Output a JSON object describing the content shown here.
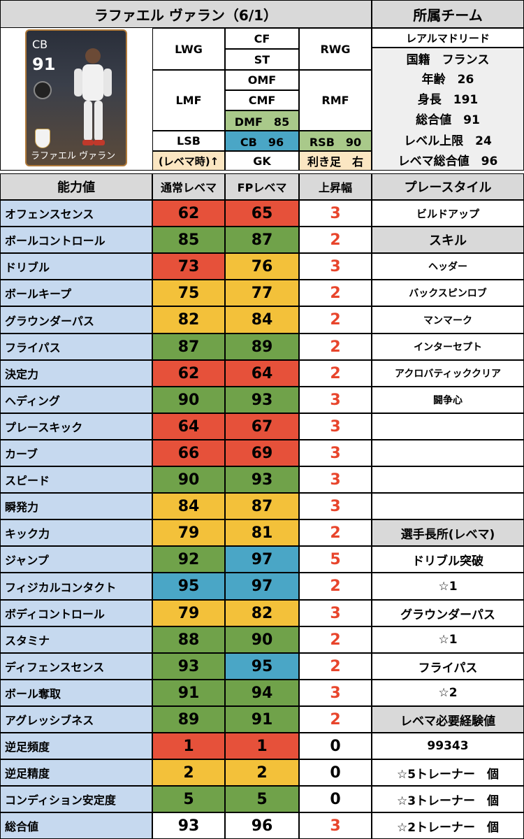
{
  "header": {
    "title": "ラファエル ヴァラン（6/1）",
    "team_header": "所属チーム"
  },
  "card": {
    "position": "CB",
    "rating": "91",
    "name": "ラファエル ヴァラン"
  },
  "positions": {
    "lwg": "LWG",
    "cf": "CF",
    "st": "ST",
    "rwg": "RWG",
    "lmf": "LMF",
    "omf": "OMF",
    "cmf": "CMF",
    "rmf": "RMF",
    "dmf": "DMF　85",
    "lsb": "LSB",
    "cb": "CB　96",
    "rsb": "RSB　90",
    "revema_note": "(レベマ時)↑",
    "gk": "GK",
    "foot": "利き足　右"
  },
  "profile": {
    "team": "レアルマドリード",
    "nationality": "国籍　フランス",
    "age": "年齢　26",
    "height": "身長　191",
    "overall": "総合値　91",
    "level_cap": "レベル上限　24",
    "revema_overall": "レベマ総合値　96"
  },
  "table": {
    "headers": [
      "能力値",
      "通常レベマ",
      "FPレベマ",
      "上昇幅",
      "プレースタイル"
    ],
    "rows": [
      {
        "name": "オフェンスセンス",
        "normal": "62",
        "fp": "65",
        "up": "3",
        "nc": "orange",
        "fc": "orange",
        "side": "ビルドアップ",
        "sc": "",
        "ss": "f15"
      },
      {
        "name": "ボールコントロール",
        "normal": "85",
        "fp": "87",
        "up": "2",
        "nc": "green",
        "fc": "green",
        "side": "スキル",
        "sc": "gray",
        "ss": "f18"
      },
      {
        "name": "ドリブル",
        "normal": "73",
        "fp": "76",
        "up": "3",
        "nc": "orange",
        "fc": "yellow",
        "side": "ヘッダー",
        "sc": "",
        "ss": "f14"
      },
      {
        "name": "ボールキープ",
        "normal": "75",
        "fp": "77",
        "up": "2",
        "nc": "yellow",
        "fc": "yellow",
        "side": "バックスピンロブ",
        "sc": "",
        "ss": "f14"
      },
      {
        "name": "グラウンダーパス",
        "normal": "82",
        "fp": "84",
        "up": "2",
        "nc": "yellow",
        "fc": "yellow",
        "side": "マンマーク",
        "sc": "",
        "ss": "f14"
      },
      {
        "name": "フライパス",
        "normal": "87",
        "fp": "89",
        "up": "2",
        "nc": "green",
        "fc": "green",
        "side": "インターセプト",
        "sc": "",
        "ss": "f14"
      },
      {
        "name": "決定力",
        "normal": "62",
        "fp": "64",
        "up": "2",
        "nc": "orange",
        "fc": "orange",
        "side": "アクロバティッククリア",
        "sc": "",
        "ss": "f14"
      },
      {
        "name": "ヘディング",
        "normal": "90",
        "fp": "93",
        "up": "3",
        "nc": "green",
        "fc": "green",
        "side": "闘争心",
        "sc": "",
        "ss": "f14"
      },
      {
        "name": "プレースキック",
        "normal": "64",
        "fp": "67",
        "up": "3",
        "nc": "orange",
        "fc": "orange",
        "side": "",
        "sc": "",
        "ss": "f14"
      },
      {
        "name": "カーブ",
        "normal": "66",
        "fp": "69",
        "up": "3",
        "nc": "orange",
        "fc": "orange",
        "side": "",
        "sc": "",
        "ss": "f14"
      },
      {
        "name": "スピード",
        "normal": "90",
        "fp": "93",
        "up": "3",
        "nc": "green",
        "fc": "green",
        "side": "",
        "sc": "",
        "ss": "f14"
      },
      {
        "name": "瞬発力",
        "normal": "84",
        "fp": "87",
        "up": "3",
        "nc": "yellow",
        "fc": "yellow",
        "side": "",
        "sc": "",
        "ss": "f14"
      },
      {
        "name": "キック力",
        "normal": "79",
        "fp": "81",
        "up": "2",
        "nc": "yellow",
        "fc": "yellow",
        "side": "選手長所(レベマ)",
        "sc": "gray",
        "ss": "f17"
      },
      {
        "name": "ジャンプ",
        "normal": "92",
        "fp": "97",
        "up": "5",
        "nc": "green",
        "fc": "cyan",
        "side": "ドリブル突破",
        "sc": "",
        "ss": "f17"
      },
      {
        "name": "フィジカルコンタクト",
        "normal": "95",
        "fp": "97",
        "up": "2",
        "nc": "cyan",
        "fc": "cyan",
        "side": "☆1",
        "sc": "",
        "ss": "f17"
      },
      {
        "name": "ボディコントロール",
        "normal": "79",
        "fp": "82",
        "up": "3",
        "nc": "yellow",
        "fc": "yellow",
        "side": "グラウンダーパス",
        "sc": "",
        "ss": "f17"
      },
      {
        "name": "スタミナ",
        "normal": "88",
        "fp": "90",
        "up": "2",
        "nc": "green",
        "fc": "green",
        "side": "☆1",
        "sc": "",
        "ss": "f17"
      },
      {
        "name": "ディフェンスセンス",
        "normal": "93",
        "fp": "95",
        "up": "2",
        "nc": "green",
        "fc": "cyan",
        "side": "フライパス",
        "sc": "",
        "ss": "f17"
      },
      {
        "name": "ボール奪取",
        "normal": "91",
        "fp": "94",
        "up": "3",
        "nc": "green",
        "fc": "green",
        "side": "☆2",
        "sc": "",
        "ss": "f17"
      },
      {
        "name": "アグレッシブネス",
        "normal": "89",
        "fp": "91",
        "up": "2",
        "nc": "green",
        "fc": "green",
        "side": "レベマ必要経験値",
        "sc": "gray",
        "ss": "f17"
      },
      {
        "name": "逆足頻度",
        "normal": "1",
        "fp": "1",
        "up": "0",
        "nc": "orange",
        "fc": "orange",
        "side": "99343",
        "sc": "",
        "ss": "f17"
      },
      {
        "name": "逆足精度",
        "normal": "2",
        "fp": "2",
        "up": "0",
        "nc": "yellow",
        "fc": "yellow",
        "side": "☆5トレーナー　個",
        "sc": "",
        "ss": "f17"
      },
      {
        "name": "コンディション安定度",
        "normal": "5",
        "fp": "5",
        "up": "0",
        "nc": "green",
        "fc": "green",
        "side": "☆3トレーナー　個",
        "sc": "",
        "ss": "f17"
      },
      {
        "name": "総合値",
        "normal": "93",
        "fp": "96",
        "up": "3",
        "nc": "",
        "fc": "",
        "side": "☆2トレーナー　個",
        "sc": "",
        "ss": "f17"
      }
    ]
  }
}
